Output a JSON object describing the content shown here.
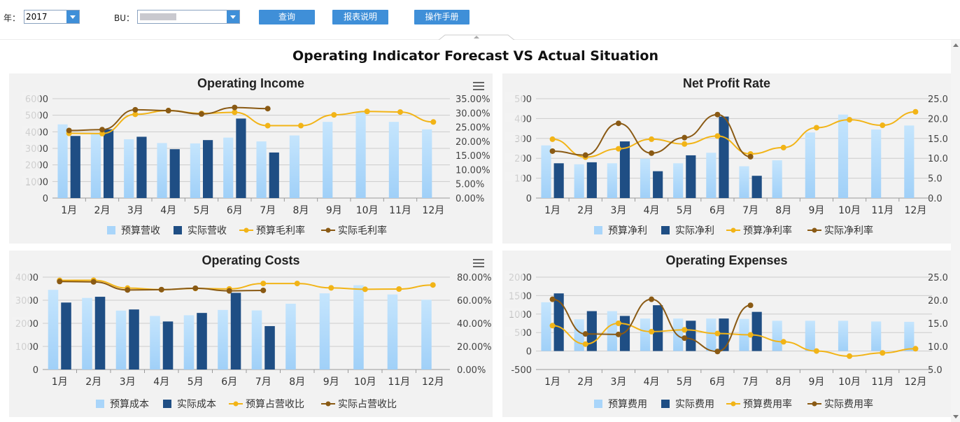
{
  "toolbar": {
    "year_label": "年：",
    "year_value": "2017",
    "bu_label": "BU：",
    "query_button": "查询",
    "report_button": "报表说明",
    "manual_button": "操作手册"
  },
  "page_title": "Operating Indicator Forecast VS Actual Situation",
  "colors": {
    "budget_bar": "#a9d5fa",
    "actual_bar": "#1f4e84",
    "budget_line": "#f2b417",
    "actual_line": "#8a5a14"
  },
  "chart_data": [
    {
      "type": "bar",
      "title": "Operating Income",
      "categories": [
        "1月",
        "2月",
        "3月",
        "4月",
        "5月",
        "6月",
        "7月",
        "8月",
        "9月",
        "10月",
        "11月",
        "12月"
      ],
      "left_axis": {
        "ticks": [
          "0",
          "1000",
          "2000",
          "3000",
          "4000",
          "5000",
          "6000"
        ],
        "ylim": [
          0,
          6000
        ],
        "tick_labels_obscured": true
      },
      "right_axis": {
        "ticks": [
          "0.00%",
          "5.00%",
          "10.00%",
          "15.00%",
          "20.00%",
          "25.00%",
          "30.00%",
          "35.00%"
        ],
        "ylim": [
          0,
          35
        ]
      },
      "series": [
        {
          "name": "预算营收",
          "kind": "bar",
          "values": [
            4450,
            3900,
            3550,
            3320,
            3300,
            3650,
            3420,
            3780,
            4600,
            5200,
            4600,
            4150
          ]
        },
        {
          "name": "实际营收",
          "kind": "bar",
          "values": [
            3750,
            4150,
            3700,
            2950,
            3500,
            4800,
            2750,
            null,
            null,
            null,
            null,
            null
          ]
        },
        {
          "name": "预算毛利率",
          "kind": "line",
          "values": [
            22.8,
            22.7,
            29.5,
            30.8,
            29.8,
            30.2,
            25.5,
            25.5,
            29.3,
            30.5,
            30.3,
            26.8
          ]
        },
        {
          "name": "实际毛利率",
          "kind": "line",
          "values": [
            23.8,
            24.1,
            31.1,
            30.8,
            29.6,
            31.9,
            31.5,
            null,
            null,
            null,
            null,
            null
          ]
        }
      ],
      "legend": "bottom"
    },
    {
      "type": "bar",
      "title": "Net Profit Rate",
      "categories": [
        "1月",
        "2月",
        "3月",
        "4月",
        "5月",
        "6月",
        "7月",
        "8月",
        "9月",
        "10月",
        "11月",
        "12月"
      ],
      "left_axis": {
        "ticks": [
          "0",
          "100",
          "200",
          "300",
          "400",
          "500"
        ],
        "ylim": [
          0,
          500
        ],
        "tick_labels_obscured": true
      },
      "right_axis": {
        "ticks": [
          "0.0",
          "5.0",
          "10.0",
          "15.0",
          "20.0",
          "25.0"
        ],
        "ylim": [
          0,
          25
        ],
        "tick_labels_clipped": true
      },
      "series": [
        {
          "name": "预算净利",
          "kind": "bar",
          "values": [
            265,
            170,
            175,
            198,
            175,
            228,
            160,
            190,
            330,
            420,
            345,
            365
          ]
        },
        {
          "name": "实际净利",
          "kind": "bar",
          "values": [
            175,
            180,
            285,
            135,
            215,
            410,
            112,
            null,
            null,
            null,
            null,
            null
          ]
        },
        {
          "name": "预算净利率",
          "kind": "line",
          "values": [
            14.8,
            10.3,
            12.4,
            14.8,
            13.6,
            15.6,
            11.1,
            12.7,
            17.7,
            19.7,
            18.3,
            21.7
          ]
        },
        {
          "name": "实际净利率",
          "kind": "line",
          "values": [
            11.8,
            10.8,
            18.8,
            11.3,
            15.2,
            21.0,
            10.4,
            null,
            null,
            null,
            null,
            null
          ]
        }
      ],
      "legend": "bottom"
    },
    {
      "type": "bar",
      "title": "Operating Costs",
      "categories": [
        "1月",
        "2月",
        "3月",
        "4月",
        "5月",
        "6月",
        "7月",
        "8月",
        "9月",
        "10月",
        "11月",
        "12月"
      ],
      "left_axis": {
        "ticks": [
          "0",
          "1000",
          "2000",
          "3000",
          "4000"
        ],
        "ylim": [
          0,
          4000
        ],
        "tick_labels_obscured": true
      },
      "right_axis": {
        "ticks": [
          "0.00%",
          "20.00%",
          "40.00%",
          "60.00%",
          "80.00%"
        ],
        "ylim": [
          0,
          80
        ]
      },
      "series": [
        {
          "name": "预算成本",
          "kind": "bar",
          "values": [
            3450,
            3100,
            2550,
            2320,
            2350,
            2580,
            2560,
            2850,
            3300,
            3650,
            3250,
            3020
          ]
        },
        {
          "name": "实际成本",
          "kind": "bar",
          "values": [
            2900,
            3150,
            2600,
            2080,
            2450,
            3320,
            1880,
            null,
            null,
            null,
            null,
            null
          ]
        },
        {
          "name": "预算占营收比",
          "kind": "line",
          "values": [
            77.2,
            77.3,
            70.5,
            69.2,
            70.2,
            69.8,
            74.5,
            74.5,
            70.7,
            69.5,
            69.7,
            73.2
          ]
        },
        {
          "name": "实际占营收比",
          "kind": "line",
          "values": [
            76.2,
            75.9,
            68.9,
            69.2,
            70.4,
            68.1,
            68.5,
            null,
            null,
            null,
            null,
            null
          ]
        }
      ],
      "legend": "bottom"
    },
    {
      "type": "bar",
      "title": "Operating Expenses",
      "categories": [
        "1月",
        "2月",
        "3月",
        "4月",
        "5月",
        "6月",
        "7月",
        "8月",
        "9月",
        "10月",
        "11月",
        "12月"
      ],
      "left_axis": {
        "ticks": [
          "-500",
          "0",
          "500",
          "1000",
          "1500",
          "2000"
        ],
        "ylim": [
          -500,
          2000
        ],
        "tick_labels_partially_obscured": true
      },
      "right_axis": {
        "ticks": [
          "5.0",
          "10.0",
          "15.0",
          "20.0",
          "25.0"
        ],
        "ylim": [
          5,
          25
        ],
        "tick_labels_clipped": true
      },
      "series": [
        {
          "name": "预算费用",
          "kind": "bar",
          "values": [
            1320,
            860,
            1080,
            880,
            880,
            880,
            870,
            820,
            820,
            820,
            800,
            790
          ]
        },
        {
          "name": "实际费用",
          "kind": "bar",
          "values": [
            1560,
            1080,
            950,
            1240,
            820,
            880,
            1060,
            null,
            null,
            null,
            null,
            null
          ]
        },
        {
          "name": "预算费用率",
          "kind": "line",
          "values": [
            14.5,
            10.5,
            15.0,
            13.2,
            13.6,
            12.8,
            12.5,
            11.0,
            9.0,
            7.9,
            8.6,
            9.5
          ]
        },
        {
          "name": "实际费用率",
          "kind": "line",
          "values": [
            20.2,
            12.7,
            12.6,
            20.2,
            11.8,
            8.9,
            18.9,
            null,
            null,
            null,
            null,
            null
          ]
        }
      ],
      "legend": "bottom"
    }
  ]
}
